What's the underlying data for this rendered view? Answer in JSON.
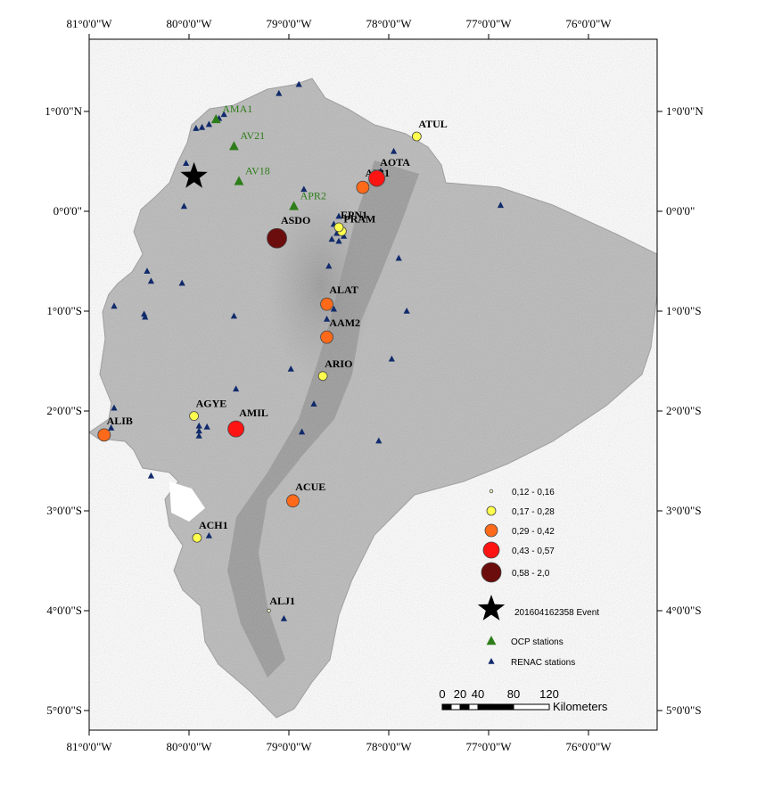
{
  "map": {
    "x_ticks": [
      "81°0'0\"W",
      "80°0'0\"W",
      "79°0'0\"W",
      "78°0'0\"W",
      "77°0'0\"W",
      "76°0'0\"W"
    ],
    "y_ticks": [
      "1°0'0\"N",
      "0°0'0\"",
      "1°0'0\"S",
      "2°0'0\"S",
      "3°0'0\"S",
      "4°0'0\"S",
      "5°0'0\"S"
    ]
  },
  "stations": [
    {
      "name": "ATUL",
      "lon": -77.72,
      "lat": 0.75,
      "cls": 1
    },
    {
      "name": "AIB1",
      "lon": -78.26,
      "lat": 0.24,
      "cls": 2
    },
    {
      "name": "AOTA",
      "lon": -78.12,
      "lat": 0.33,
      "cls": 3
    },
    {
      "name": "PRAM",
      "lon": -78.47,
      "lat": -0.2,
      "cls": 1
    },
    {
      "name": "EPN1",
      "lon": -78.5,
      "lat": -0.16,
      "cls": 1
    },
    {
      "name": "ASDO",
      "lon": -79.12,
      "lat": -0.27,
      "cls": 4
    },
    {
      "name": "ALAT",
      "lon": -78.62,
      "lat": -0.93,
      "cls": 2
    },
    {
      "name": "AAM2",
      "lon": -78.62,
      "lat": -1.26,
      "cls": 2
    },
    {
      "name": "ARIO",
      "lon": -78.66,
      "lat": -1.65,
      "cls": 1
    },
    {
      "name": "AGYE",
      "lon": -79.95,
      "lat": -2.05,
      "cls": 1
    },
    {
      "name": "AMIL",
      "lon": -79.53,
      "lat": -2.18,
      "cls": 3
    },
    {
      "name": "ALIB",
      "lon": -80.85,
      "lat": -2.24,
      "cls": 2
    },
    {
      "name": "ACUE",
      "lon": -78.96,
      "lat": -2.9,
      "cls": 2
    },
    {
      "name": "ACH1",
      "lon": -79.92,
      "lat": -3.27,
      "cls": 1
    },
    {
      "name": "ALJ1",
      "lon": -79.2,
      "lat": -4.0,
      "cls": 0
    }
  ],
  "ocp_stations": [
    {
      "name": "AMA1",
      "lon": -79.73,
      "lat": 0.92
    },
    {
      "name": "AV21",
      "lon": -79.55,
      "lat": 0.65
    },
    {
      "name": "AV18",
      "lon": -79.5,
      "lat": 0.3
    },
    {
      "name": "APR2",
      "lon": -78.95,
      "lat": 0.05
    }
  ],
  "renac_stations": [
    {
      "lon": -78.9,
      "lat": 1.27
    },
    {
      "lon": -79.1,
      "lat": 1.18
    },
    {
      "lon": -79.65,
      "lat": 0.97
    },
    {
      "lon": -79.7,
      "lat": 0.93
    },
    {
      "lon": -79.8,
      "lat": 0.87
    },
    {
      "lon": -79.87,
      "lat": 0.84
    },
    {
      "lon": -79.93,
      "lat": 0.83
    },
    {
      "lon": -80.03,
      "lat": 0.48
    },
    {
      "lon": -80.05,
      "lat": 0.05
    },
    {
      "lon": -78.85,
      "lat": 0.22
    },
    {
      "lon": -78.08,
      "lat": 0.4
    },
    {
      "lon": -77.95,
      "lat": 0.6
    },
    {
      "lon": -76.88,
      "lat": 0.06
    },
    {
      "lon": -78.5,
      "lat": -0.05
    },
    {
      "lon": -78.55,
      "lat": -0.13
    },
    {
      "lon": -78.52,
      "lat": -0.22
    },
    {
      "lon": -78.57,
      "lat": -0.28
    },
    {
      "lon": -78.5,
      "lat": -0.3
    },
    {
      "lon": -78.45,
      "lat": -0.25
    },
    {
      "lon": -78.6,
      "lat": -0.55
    },
    {
      "lon": -77.9,
      "lat": -0.47
    },
    {
      "lon": -77.82,
      "lat": -1.0
    },
    {
      "lon": -78.55,
      "lat": -0.98
    },
    {
      "lon": -78.62,
      "lat": -1.08
    },
    {
      "lon": -77.97,
      "lat": -1.48
    },
    {
      "lon": -78.98,
      "lat": -1.58
    },
    {
      "lon": -79.55,
      "lat": -1.05
    },
    {
      "lon": -79.53,
      "lat": -1.78
    },
    {
      "lon": -78.75,
      "lat": -1.93
    },
    {
      "lon": -78.87,
      "lat": -2.21
    },
    {
      "lon": -78.1,
      "lat": -2.3
    },
    {
      "lon": -80.42,
      "lat": -0.6
    },
    {
      "lon": -80.38,
      "lat": -0.7
    },
    {
      "lon": -80.07,
      "lat": -0.72
    },
    {
      "lon": -80.75,
      "lat": -0.95
    },
    {
      "lon": -80.45,
      "lat": -1.03
    },
    {
      "lon": -80.44,
      "lat": -1.06
    },
    {
      "lon": -80.75,
      "lat": -1.97
    },
    {
      "lon": -80.78,
      "lat": -2.17
    },
    {
      "lon": -79.9,
      "lat": -2.15
    },
    {
      "lon": -79.82,
      "lat": -2.16
    },
    {
      "lon": -79.9,
      "lat": -2.2
    },
    {
      "lon": -79.9,
      "lat": -2.25
    },
    {
      "lon": -80.38,
      "lat": -2.65
    },
    {
      "lon": -79.8,
      "lat": -3.25
    },
    {
      "lon": -79.05,
      "lat": -4.08
    }
  ],
  "event": {
    "lon": -79.95,
    "lat": 0.35
  },
  "legend": {
    "items": [
      {
        "label": "0,12 - 0,16",
        "cls": 0
      },
      {
        "label": "0,17 - 0,28",
        "cls": 1
      },
      {
        "label": "0,29 - 0,42",
        "cls": 2
      },
      {
        "label": "0,43 - 0,57",
        "cls": 3
      },
      {
        "label": "0,58 - 2,0",
        "cls": 4
      }
    ],
    "event_label": "201604162358 Event",
    "ocp_label": "OCP stations",
    "renac_label": "RENAC stations"
  },
  "classes": [
    {
      "range": "0,12 - 0,16",
      "color": "#ffffcc"
    },
    {
      "range": "0,17 - 0,28",
      "color": "#ffff4d"
    },
    {
      "range": "0,29 - 0,42",
      "color": "#ff6a1a"
    },
    {
      "range": "0,43 - 0,57",
      "color": "#ff1414"
    },
    {
      "range": "0,58 - 2,0",
      "color": "#6b0d0d"
    }
  ],
  "colors": {
    "ocp": "#2e7d1a",
    "renac": "#102a6b",
    "terrain": "#b9b9b9"
  },
  "scalebar": {
    "ticks": [
      "0",
      "20",
      "40",
      "80",
      "120"
    ],
    "unit": "Kilometers"
  }
}
